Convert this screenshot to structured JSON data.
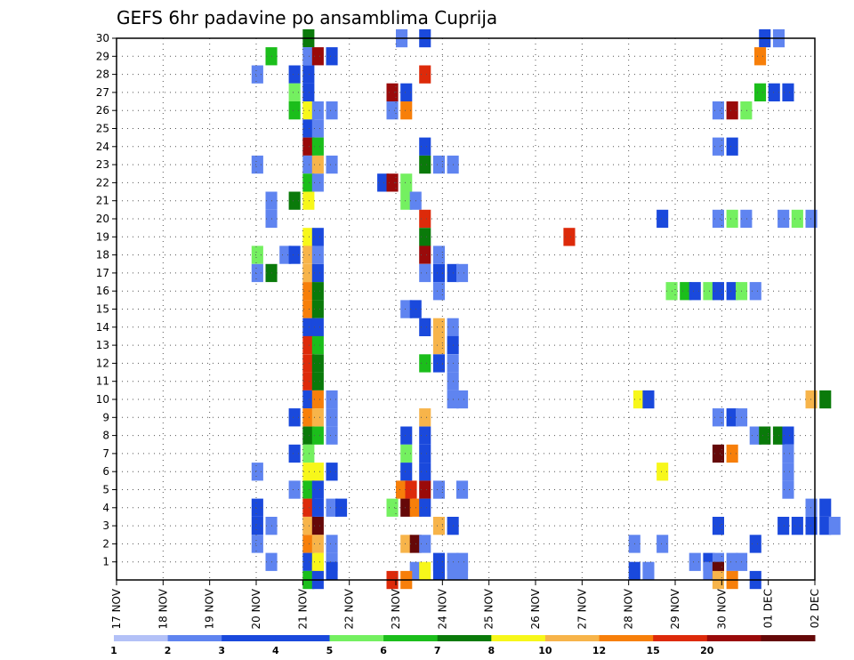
{
  "chart_data": {
    "type": "heatmap",
    "title": "GEFS 6hr padavine po ansamblima Cuprija",
    "x_tick_labels": [
      "17 NOV",
      "18 NOV",
      "19 NOV",
      "20 NOV",
      "21 NOV",
      "22 NOV",
      "23 NOV",
      "24 NOV",
      "25 NOV",
      "26 NOV",
      "27 NOV",
      "28 NOV",
      "29 NOV",
      "30 NOV",
      "01 DEC",
      "02 DEC"
    ],
    "x_steps_per_day": 4,
    "y_tick_labels": [
      "1",
      "2",
      "3",
      "4",
      "5",
      "6",
      "7",
      "8",
      "9",
      "10",
      "11",
      "12",
      "13",
      "14",
      "15",
      "16",
      "17",
      "18",
      "19",
      "20",
      "21",
      "22",
      "23",
      "24",
      "25",
      "26",
      "27",
      "28",
      "29",
      "30"
    ],
    "y_range": [
      0,
      30
    ],
    "grid": true,
    "legend": {
      "placement": "bottom",
      "levels": [
        "1",
        "2",
        "3",
        "4",
        "5",
        "6",
        "7",
        "8",
        "10",
        "12",
        "15",
        "20"
      ],
      "colors": [
        "#b3c1f7",
        "#5f84f0",
        "#1a49dc",
        "#1a49dc",
        "#74f060",
        "#1bbe1b",
        "#0a7a0a",
        "#f7f71a",
        "#f7b44a",
        "#f77f0a",
        "#dd2a0a",
        "#9a0a0a",
        "#650808"
      ]
    },
    "points": [
      [
        4,
        30,
        6
      ],
      [
        6,
        30,
        1
      ],
      [
        6.5,
        30,
        2
      ],
      [
        13.8,
        30,
        2
      ],
      [
        14.1,
        30,
        1
      ],
      [
        3.2,
        29,
        5
      ],
      [
        4,
        29,
        1
      ],
      [
        4.2,
        29,
        11
      ],
      [
        4.5,
        29,
        2
      ],
      [
        13.7,
        29,
        9
      ],
      [
        2.9,
        28,
        1
      ],
      [
        3.7,
        28,
        2
      ],
      [
        4,
        28,
        2
      ],
      [
        6.5,
        28,
        10
      ],
      [
        3.7,
        27,
        4
      ],
      [
        4,
        27,
        2
      ],
      [
        5.8,
        27,
        11
      ],
      [
        6.1,
        27,
        2
      ],
      [
        13.7,
        27,
        5
      ],
      [
        14,
        27,
        2
      ],
      [
        14.3,
        27,
        2
      ],
      [
        3.7,
        26,
        5
      ],
      [
        4,
        26,
        7
      ],
      [
        4.2,
        26,
        1
      ],
      [
        4.5,
        26,
        1
      ],
      [
        5.8,
        26,
        1
      ],
      [
        6.1,
        26,
        9
      ],
      [
        12.8,
        26,
        1
      ],
      [
        13.1,
        26,
        11
      ],
      [
        13.4,
        26,
        4
      ],
      [
        4,
        25,
        2
      ],
      [
        4.2,
        25,
        1
      ],
      [
        4,
        24,
        11
      ],
      [
        4.2,
        24,
        5
      ],
      [
        6.5,
        24,
        3
      ],
      [
        12.8,
        24,
        1
      ],
      [
        13.1,
        24,
        3
      ],
      [
        2.9,
        23,
        1
      ],
      [
        4,
        23,
        1
      ],
      [
        4.2,
        23,
        8
      ],
      [
        4.5,
        23,
        1
      ],
      [
        6.5,
        23,
        6
      ],
      [
        6.8,
        23,
        1
      ],
      [
        7.1,
        23,
        1
      ],
      [
        4,
        22,
        5
      ],
      [
        4.2,
        22,
        1
      ],
      [
        5.6,
        22,
        3
      ],
      [
        5.8,
        22,
        11
      ],
      [
        6.1,
        22,
        4
      ],
      [
        3.2,
        21,
        1
      ],
      [
        3.7,
        21,
        6
      ],
      [
        4,
        21,
        7
      ],
      [
        6.1,
        21,
        4
      ],
      [
        6.3,
        21,
        1
      ],
      [
        3.2,
        20,
        1
      ],
      [
        6.5,
        20,
        10
      ],
      [
        11.6,
        20,
        3
      ],
      [
        12.8,
        20,
        1
      ],
      [
        13.1,
        20,
        4
      ],
      [
        13.4,
        20,
        1
      ],
      [
        14.2,
        20,
        1
      ],
      [
        14.5,
        20,
        4
      ],
      [
        14.8,
        20,
        1
      ],
      [
        4,
        19,
        7
      ],
      [
        4.2,
        19,
        2
      ],
      [
        6.5,
        19,
        6
      ],
      [
        9.6,
        19,
        10
      ],
      [
        2.9,
        18,
        4
      ],
      [
        3.5,
        18,
        1
      ],
      [
        3.7,
        18,
        3
      ],
      [
        4,
        18,
        8
      ],
      [
        4.2,
        18,
        1
      ],
      [
        6.5,
        18,
        11
      ],
      [
        6.8,
        18,
        1
      ],
      [
        2.9,
        17,
        1
      ],
      [
        3.2,
        17,
        6
      ],
      [
        4,
        17,
        8
      ],
      [
        4.2,
        17,
        2
      ],
      [
        6.5,
        17,
        1
      ],
      [
        6.8,
        17,
        3
      ],
      [
        7.1,
        17,
        2
      ],
      [
        7.3,
        17,
        1
      ],
      [
        4,
        16,
        9
      ],
      [
        4.2,
        16,
        6
      ],
      [
        6.8,
        16,
        1
      ],
      [
        11.8,
        16,
        4
      ],
      [
        12.1,
        16,
        5
      ],
      [
        12.3,
        16,
        3
      ],
      [
        12.6,
        16,
        4
      ],
      [
        12.8,
        16,
        2
      ],
      [
        13.1,
        16,
        2
      ],
      [
        13.3,
        16,
        4
      ],
      [
        13.6,
        16,
        1
      ],
      [
        4,
        15,
        9
      ],
      [
        4.2,
        15,
        6
      ],
      [
        6.1,
        15,
        1
      ],
      [
        6.3,
        15,
        2
      ],
      [
        4,
        14,
        3
      ],
      [
        4.2,
        14,
        3
      ],
      [
        6.5,
        14,
        3
      ],
      [
        6.8,
        14,
        8
      ],
      [
        7.1,
        14,
        1
      ],
      [
        4,
        13,
        10
      ],
      [
        4.2,
        13,
        5
      ],
      [
        6.8,
        13,
        8
      ],
      [
        7.1,
        13,
        3
      ],
      [
        4,
        12,
        10
      ],
      [
        4.2,
        12,
        6
      ],
      [
        6.5,
        12,
        5
      ],
      [
        6.8,
        12,
        2
      ],
      [
        7.1,
        12,
        1
      ],
      [
        4,
        11,
        10
      ],
      [
        4.2,
        11,
        6
      ],
      [
        7.1,
        11,
        1
      ],
      [
        4,
        10,
        3
      ],
      [
        4.2,
        10,
        9
      ],
      [
        4.5,
        10,
        1
      ],
      [
        7.1,
        10,
        1
      ],
      [
        7.3,
        10,
        1
      ],
      [
        11.1,
        10,
        7
      ],
      [
        11.3,
        10,
        2
      ],
      [
        14.8,
        10,
        8
      ],
      [
        15.1,
        10,
        6
      ],
      [
        3.7,
        9,
        3
      ],
      [
        4,
        9,
        9
      ],
      [
        4.2,
        9,
        8
      ],
      [
        4.5,
        9,
        1
      ],
      [
        6.5,
        9,
        8
      ],
      [
        12.8,
        9,
        1
      ],
      [
        13.1,
        9,
        2
      ],
      [
        13.3,
        9,
        1
      ],
      [
        4,
        8,
        6
      ],
      [
        4.2,
        8,
        5
      ],
      [
        4.5,
        8,
        1
      ],
      [
        6.1,
        8,
        3
      ],
      [
        6.5,
        8,
        2
      ],
      [
        13.6,
        8,
        1
      ],
      [
        13.8,
        8,
        6
      ],
      [
        14.1,
        8,
        6
      ],
      [
        14.3,
        8,
        2
      ],
      [
        3.7,
        7,
        2
      ],
      [
        4,
        7,
        4
      ],
      [
        6.1,
        7,
        4
      ],
      [
        6.5,
        7,
        2
      ],
      [
        12.8,
        7,
        12
      ],
      [
        13.1,
        7,
        9
      ],
      [
        14.3,
        7,
        1
      ],
      [
        2.9,
        6,
        1
      ],
      [
        4,
        6,
        7
      ],
      [
        4.2,
        6,
        7
      ],
      [
        4.5,
        6,
        3
      ],
      [
        6.1,
        6,
        3
      ],
      [
        6.5,
        6,
        2
      ],
      [
        11.6,
        6,
        7
      ],
      [
        14.3,
        6,
        1
      ],
      [
        3.7,
        5,
        1
      ],
      [
        4,
        5,
        5
      ],
      [
        4.2,
        5,
        3
      ],
      [
        6,
        5,
        9
      ],
      [
        6.2,
        5,
        10
      ],
      [
        6.5,
        5,
        11
      ],
      [
        6.8,
        5,
        1
      ],
      [
        7.3,
        5,
        1
      ],
      [
        14.3,
        5,
        1
      ],
      [
        2.9,
        4,
        2
      ],
      [
        4,
        4,
        10
      ],
      [
        4.2,
        4,
        3
      ],
      [
        4.5,
        4,
        1
      ],
      [
        4.7,
        4,
        2
      ],
      [
        5.8,
        4,
        4
      ],
      [
        6.1,
        4,
        12
      ],
      [
        6.3,
        4,
        9
      ],
      [
        6.5,
        4,
        2
      ],
      [
        14.8,
        4,
        1
      ],
      [
        15.1,
        4,
        2
      ],
      [
        2.9,
        3,
        3
      ],
      [
        3.2,
        3,
        1
      ],
      [
        4,
        3,
        8
      ],
      [
        4.2,
        3,
        12
      ],
      [
        6.8,
        3,
        8
      ],
      [
        7.1,
        3,
        3
      ],
      [
        12.8,
        3,
        3
      ],
      [
        14.2,
        3,
        2
      ],
      [
        14.5,
        3,
        2
      ],
      [
        14.8,
        3,
        2
      ],
      [
        15.1,
        3,
        2
      ],
      [
        15.3,
        3,
        1
      ],
      [
        2.9,
        2,
        1
      ],
      [
        4,
        2,
        9
      ],
      [
        4.2,
        2,
        8
      ],
      [
        4.5,
        2,
        1
      ],
      [
        6.1,
        2,
        8
      ],
      [
        6.3,
        2,
        12
      ],
      [
        6.5,
        2,
        1
      ],
      [
        11,
        2,
        1
      ],
      [
        11.6,
        2,
        1
      ],
      [
        13.6,
        2,
        3
      ],
      [
        3.2,
        1,
        1
      ],
      [
        4,
        1,
        3
      ],
      [
        4.2,
        1,
        7
      ],
      [
        4.5,
        1,
        1
      ],
      [
        6.8,
        1,
        3
      ],
      [
        7.1,
        1,
        1
      ],
      [
        7.3,
        1,
        1
      ],
      [
        12.3,
        1,
        1
      ],
      [
        12.6,
        1,
        2
      ],
      [
        12.8,
        1,
        1
      ],
      [
        13.1,
        1,
        1
      ],
      [
        13.3,
        1,
        1
      ],
      [
        4.2,
        0.5,
        7
      ],
      [
        4.5,
        0.5,
        2
      ],
      [
        6.3,
        0.5,
        1
      ],
      [
        6.5,
        0.5,
        7
      ],
      [
        6.8,
        0.5,
        3
      ],
      [
        7.1,
        0.5,
        1
      ],
      [
        7.3,
        0.5,
        1
      ],
      [
        11,
        0.5,
        3
      ],
      [
        11.3,
        0.5,
        1
      ],
      [
        12.6,
        0.5,
        1
      ],
      [
        12.8,
        0.5,
        12
      ],
      [
        4,
        0,
        5
      ],
      [
        4.2,
        0,
        3
      ],
      [
        5.8,
        0,
        10
      ],
      [
        6.1,
        0,
        9
      ],
      [
        12.8,
        0,
        8
      ],
      [
        13.1,
        0,
        9
      ],
      [
        13.6,
        0,
        2
      ]
    ]
  }
}
